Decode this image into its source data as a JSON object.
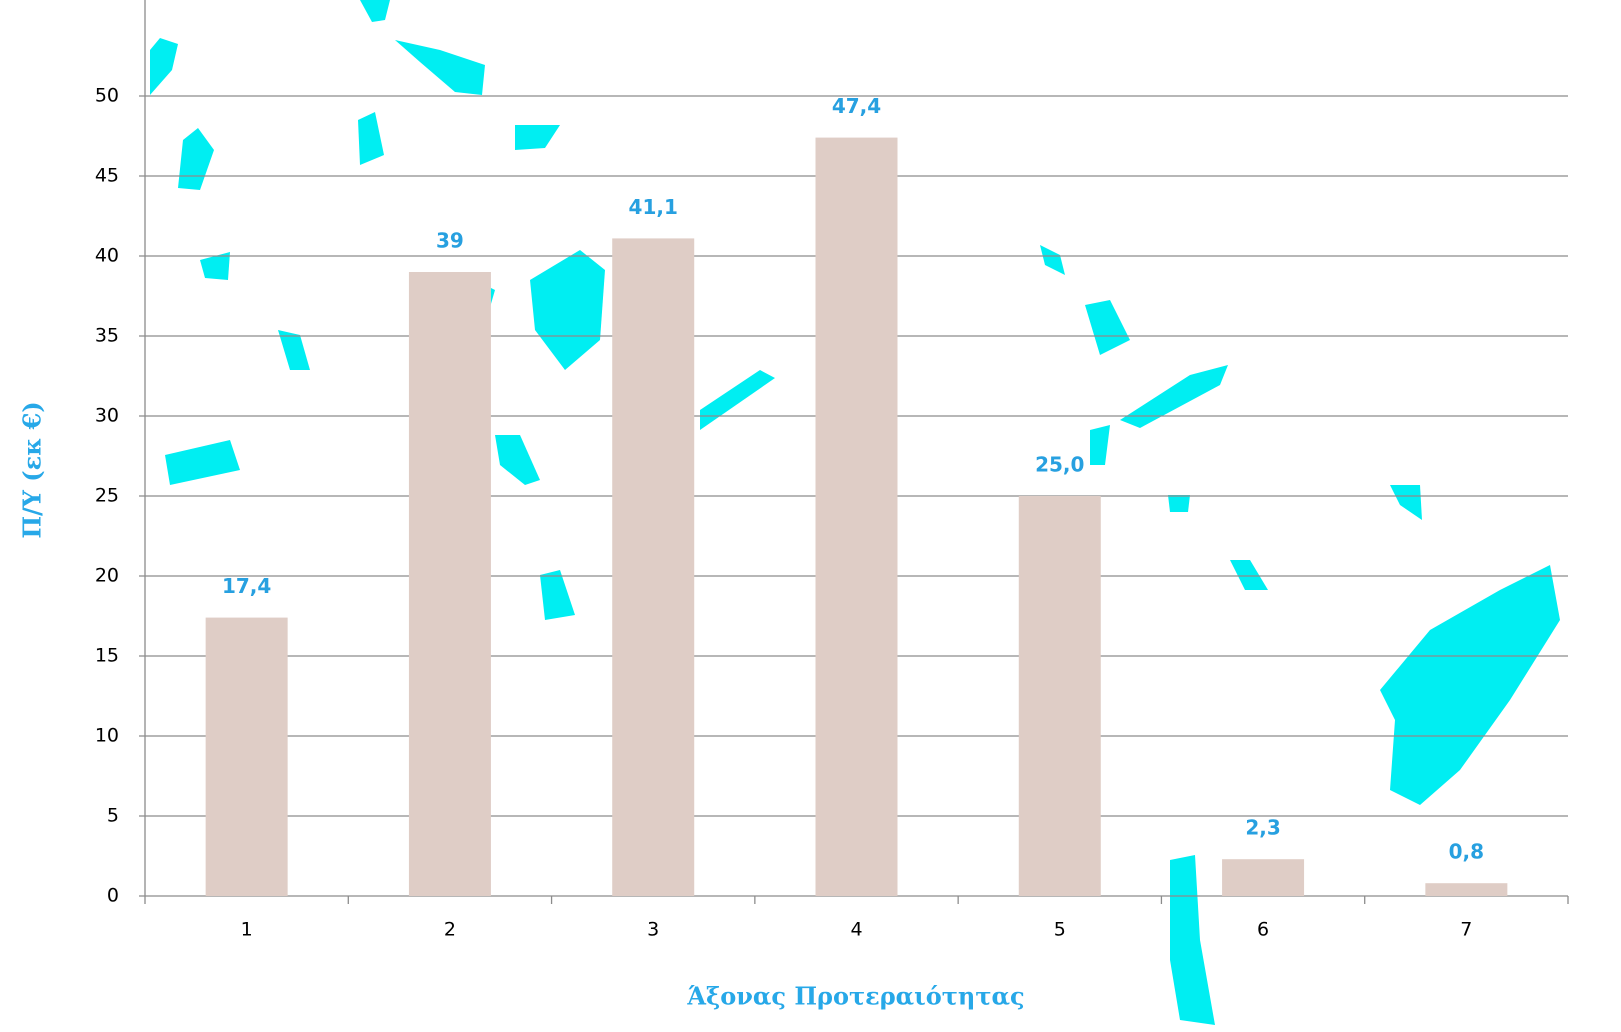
{
  "chart_data": {
    "type": "bar",
    "x_label": "Άξονας Προτεραιότητας",
    "y_label": "Π/Υ (εκ €)",
    "categories": [
      "1",
      "2",
      "3",
      "4",
      "5",
      "6",
      "7"
    ],
    "values": [
      17.4,
      39,
      41.1,
      47.4,
      25.0,
      2.3,
      0.8
    ],
    "value_labels": [
      "17,4",
      "39",
      "41,1",
      "47,4",
      "25,0",
      "2,3",
      "0,8"
    ],
    "color": "#dfcdc6",
    "ylim": [
      0,
      56
    ],
    "yticks": [
      0,
      5,
      10,
      15,
      20,
      25,
      30,
      35,
      40,
      45,
      50
    ],
    "grid": true
  }
}
